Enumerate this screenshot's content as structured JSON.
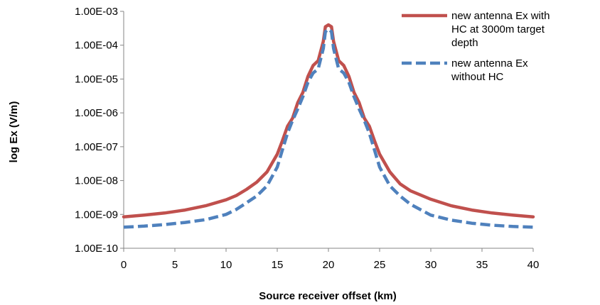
{
  "chart_data": {
    "type": "line",
    "xlabel": "Source receiver offset (km)",
    "ylabel": "log Ex (V/m)",
    "x_scale": "linear",
    "y_scale": "log",
    "xlim": [
      0,
      40
    ],
    "ylim": [
      1e-10,
      0.001
    ],
    "x_ticks": [
      0,
      5,
      10,
      15,
      20,
      25,
      30,
      35,
      40
    ],
    "x_tick_labels": [
      "0",
      "5",
      "10",
      "15",
      "20",
      "25",
      "30",
      "35",
      "40"
    ],
    "y_ticks": [
      1e-10,
      1e-09,
      1e-08,
      1e-07,
      1e-06,
      1e-05,
      0.0001,
      0.001
    ],
    "y_tick_labels": [
      "1.00E-10",
      "1.00E-09",
      "1.00E-08",
      "1.00E-07",
      "1.00E-06",
      "1.00E-05",
      "1.00E-04",
      "1.00E-03"
    ],
    "grid": false,
    "legend_position": "top-right",
    "series": [
      {
        "name": "new antenna Ex with HC at 3000m target depth",
        "legend_lines": [
          "new antenna Ex with",
          "HC at 3000m target",
          "depth"
        ],
        "color": "#C0504D",
        "dash": "solid",
        "x": [
          0,
          2,
          4,
          6,
          8,
          10,
          11,
          12,
          13,
          14,
          15,
          15.5,
          16,
          16.5,
          17,
          17.5,
          18,
          18.5,
          19,
          19.5,
          19.7,
          20,
          20.3,
          20.5,
          21,
          21.5,
          22,
          22.5,
          23,
          23.5,
          24,
          24.5,
          25,
          26,
          27,
          28,
          30,
          32,
          34,
          36,
          38,
          40
        ],
        "y": [
          8.5e-10,
          9.5e-10,
          1.1e-09,
          1.35e-09,
          1.8e-09,
          2.7e-09,
          3.6e-09,
          5.5e-09,
          9e-09,
          1.8e-08,
          6e-08,
          1.5e-07,
          4e-07,
          7e-07,
          2e-06,
          4e-06,
          1.2e-05,
          2.5e-05,
          3.5e-05,
          0.00013,
          0.00035,
          0.0004,
          0.00035,
          0.00013,
          3.5e-05,
          2.5e-05,
          1.2e-05,
          4e-06,
          2e-06,
          7e-07,
          4e-07,
          1.5e-07,
          6e-08,
          1.8e-08,
          8e-09,
          5e-09,
          2.8e-09,
          1.8e-09,
          1.35e-09,
          1.1e-09,
          9.5e-10,
          8.5e-10
        ]
      },
      {
        "name": "new antenna Ex without HC",
        "legend_lines": [
          "new antenna Ex",
          "without HC"
        ],
        "color": "#4F81BD",
        "dash": "dashed",
        "x": [
          0,
          2,
          4,
          6,
          8,
          10,
          11,
          12,
          13,
          14,
          15,
          15.5,
          16,
          16.5,
          17,
          17.5,
          18,
          18.5,
          19,
          19.5,
          19.7,
          20,
          20.3,
          20.5,
          21,
          21.5,
          22,
          22.5,
          23,
          23.5,
          24,
          24.5,
          25,
          26,
          27,
          28,
          30,
          32,
          34,
          36,
          38,
          40
        ],
        "y": [
          4.2e-10,
          4.5e-10,
          5e-10,
          5.8e-10,
          7e-10,
          1e-09,
          1.4e-09,
          2.2e-09,
          3.5e-09,
          7e-09,
          2.5e-08,
          8e-08,
          2.5e-07,
          6e-07,
          1.3e-06,
          3e-06,
          8e-06,
          1.5e-05,
          2e-05,
          8e-05,
          0.00025,
          0.0003,
          0.00025,
          8e-05,
          2e-05,
          1.5e-05,
          8e-06,
          3e-06,
          1.3e-06,
          6e-07,
          2.5e-07,
          8e-08,
          2.5e-08,
          7e-09,
          3.5e-09,
          2e-09,
          9.5e-10,
          6.8e-10,
          5.5e-10,
          4.8e-10,
          4.4e-10,
          4.2e-10
        ]
      }
    ]
  }
}
